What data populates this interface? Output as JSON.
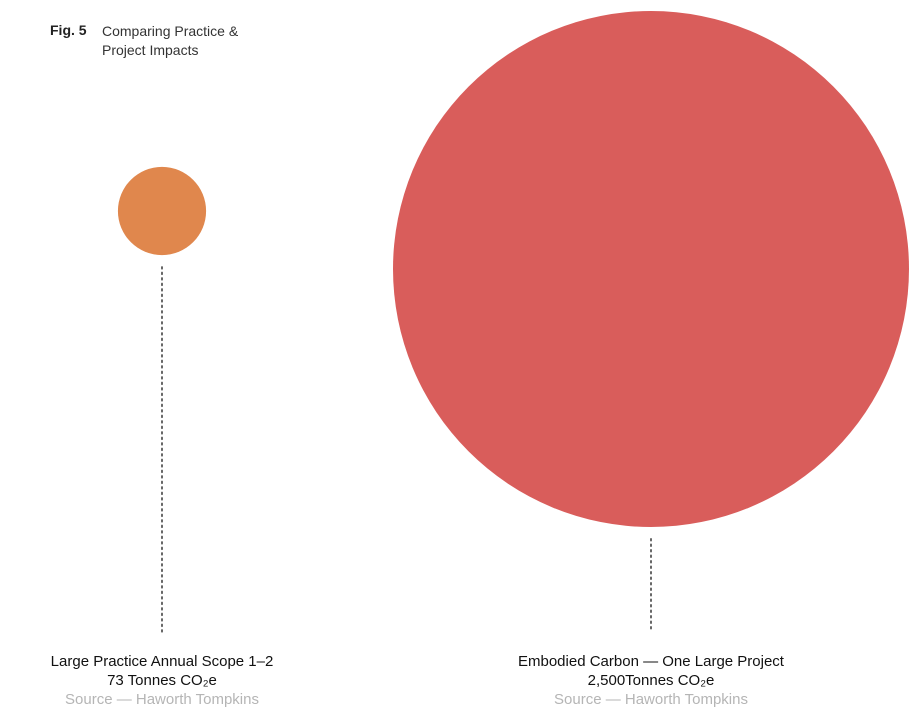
{
  "chart_data": {
    "type": "bubble",
    "title": "Fig. 5",
    "subtitle": "Comparing Practice & Project Impacts",
    "categories": [
      "Large Practice Annual Scope 1–2",
      "Embodied Carbon — One Large Project"
    ],
    "values": [
      73,
      2500
    ],
    "value_labels": [
      "73 Tonnes CO₂e",
      "2,500Tonnes CO₂e"
    ],
    "colors": [
      "#e0874d",
      "#d95d5b"
    ],
    "sources": [
      "Source — Haworth Tompkins",
      "Source — Haworth Tompkins"
    ]
  }
}
